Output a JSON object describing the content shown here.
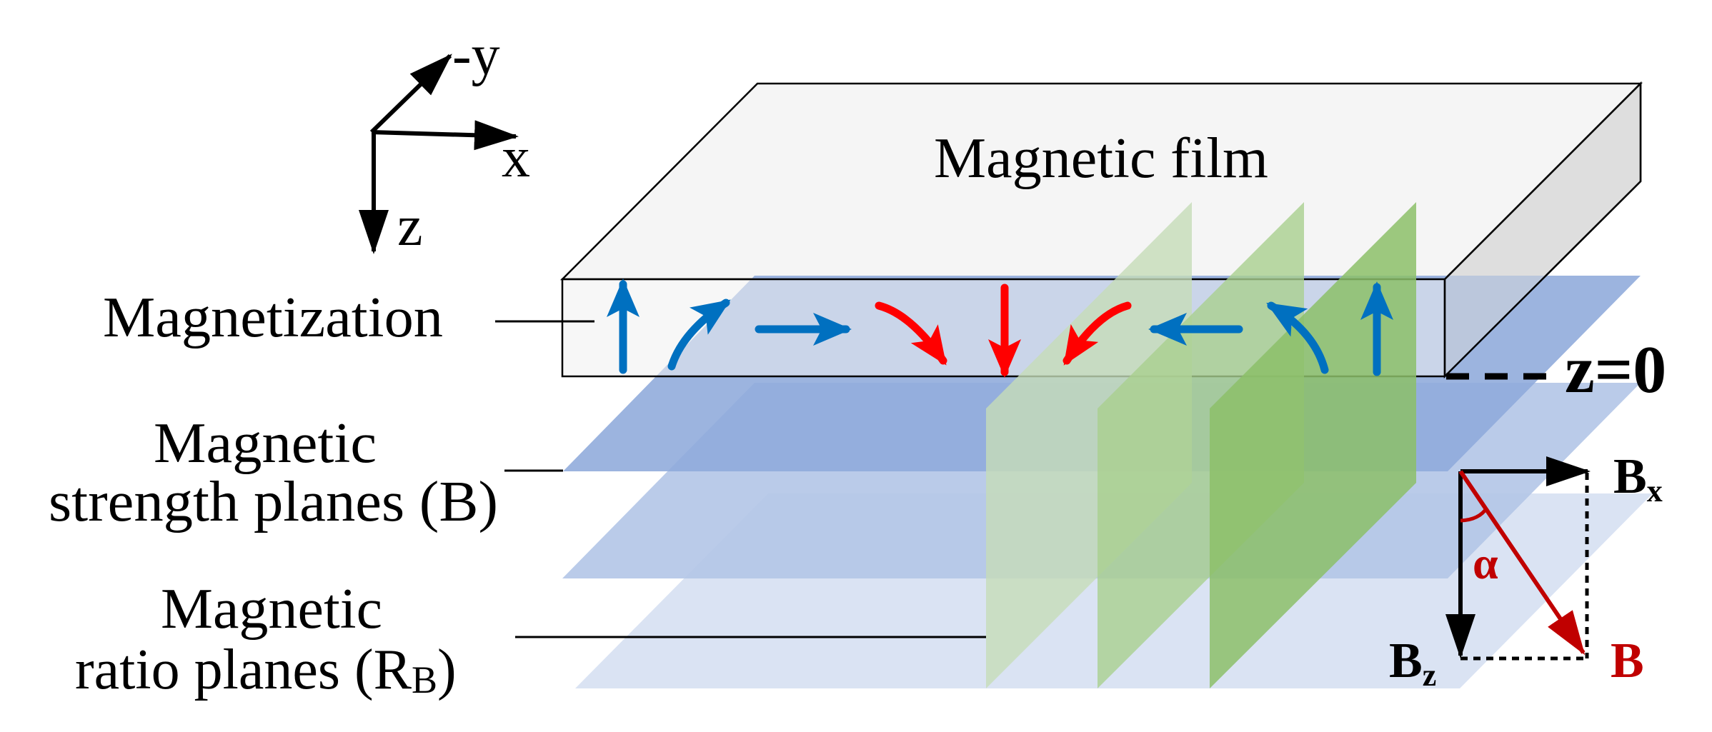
{
  "labels": {
    "film": "Magnetic film",
    "magnetization": "Magnetization",
    "strength_line1": "Magnetic",
    "strength_line2": "strength planes (B)",
    "ratio_line1": "Magnetic",
    "ratio_line2_main": "ratio planes (R",
    "ratio_line2_sub": "B",
    "ratio_line2_end": ")",
    "z0": "z=0"
  },
  "axes": {
    "x": "x",
    "neg_y": "-y",
    "z": "z"
  },
  "vector": {
    "bx_main": "B",
    "bx_sub": "x",
    "bz_main": "B",
    "bz_sub": "z",
    "b": "B",
    "alpha": "α"
  },
  "colors": {
    "blue_arrow": "#0070c0",
    "red_arrow": "#ff0000",
    "dark_red": "#c00000",
    "strength_plane": "#8eaadb",
    "strength_plane_2": "#b4c7e7",
    "ratio_plane": "#dae3f3",
    "green_planes": [
      "#c5dcb8",
      "#a9cf8e",
      "#8cbf68"
    ]
  },
  "magnetization_arrows": [
    "up",
    "up-right",
    "right",
    "down-right",
    "down",
    "down-left",
    "left",
    "up-left",
    "up"
  ]
}
